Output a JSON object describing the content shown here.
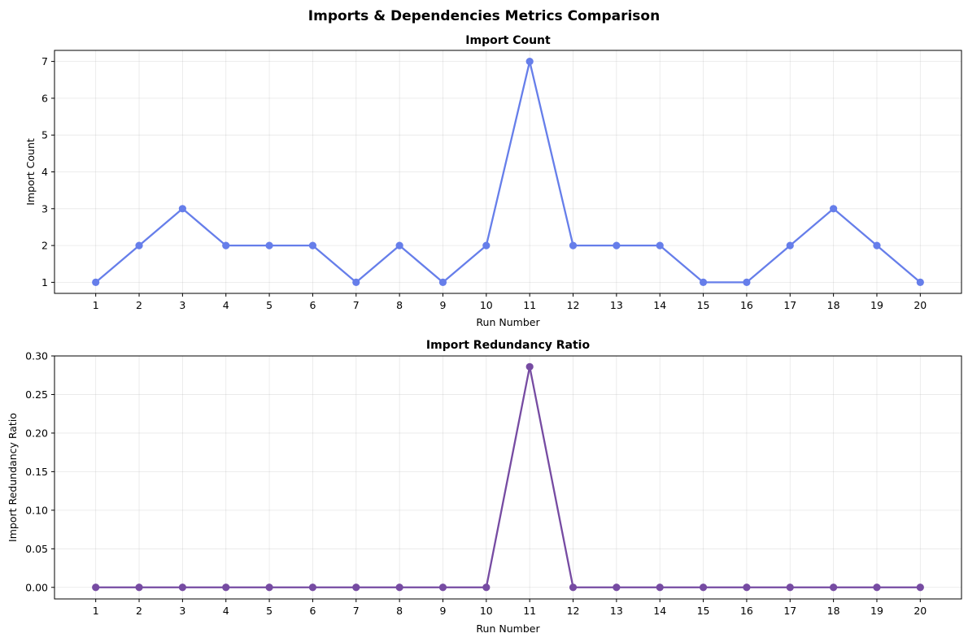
{
  "figure": {
    "title": "Imports & Dependencies Metrics Comparison"
  },
  "chart_data": [
    {
      "type": "line",
      "title": "Import Count",
      "xlabel": "Run Number",
      "ylabel": "Import Count",
      "x": [
        1,
        2,
        3,
        4,
        5,
        6,
        7,
        8,
        9,
        10,
        11,
        12,
        13,
        14,
        15,
        16,
        17,
        18,
        19,
        20
      ],
      "xticks": [
        "1",
        "2",
        "3",
        "4",
        "5",
        "6",
        "7",
        "8",
        "9",
        "10",
        "11",
        "12",
        "13",
        "14",
        "15",
        "16",
        "17",
        "18",
        "19",
        "20"
      ],
      "yticks": [
        "1",
        "2",
        "3",
        "4",
        "5",
        "6",
        "7"
      ],
      "ylim": [
        0.7,
        7.3
      ],
      "xlim": [
        0.05,
        20.95
      ],
      "grid": true,
      "series": [
        {
          "color": "#667eea",
          "values": [
            1,
            2,
            3,
            2,
            2,
            2,
            1,
            2,
            1,
            2,
            7,
            2,
            2,
            2,
            1,
            1,
            2,
            3,
            2,
            1
          ]
        }
      ]
    },
    {
      "type": "line",
      "title": "Import Redundancy Ratio",
      "xlabel": "Run Number",
      "ylabel": "Import Redundancy Ratio",
      "x": [
        1,
        2,
        3,
        4,
        5,
        6,
        7,
        8,
        9,
        10,
        11,
        12,
        13,
        14,
        15,
        16,
        17,
        18,
        19,
        20
      ],
      "xticks": [
        "1",
        "2",
        "3",
        "4",
        "5",
        "6",
        "7",
        "8",
        "9",
        "10",
        "11",
        "12",
        "13",
        "14",
        "15",
        "16",
        "17",
        "18",
        "19",
        "20"
      ],
      "yticks": [
        "0.00",
        "0.05",
        "0.10",
        "0.15",
        "0.20",
        "0.25",
        "0.30"
      ],
      "ylim": [
        -0.015,
        0.3
      ],
      "xlim": [
        0.05,
        20.95
      ],
      "grid": true,
      "series": [
        {
          "color": "#764ba2",
          "values": [
            0,
            0,
            0,
            0,
            0,
            0,
            0,
            0,
            0,
            0,
            0.286,
            0,
            0,
            0,
            0,
            0,
            0,
            0,
            0,
            0
          ]
        }
      ]
    }
  ]
}
